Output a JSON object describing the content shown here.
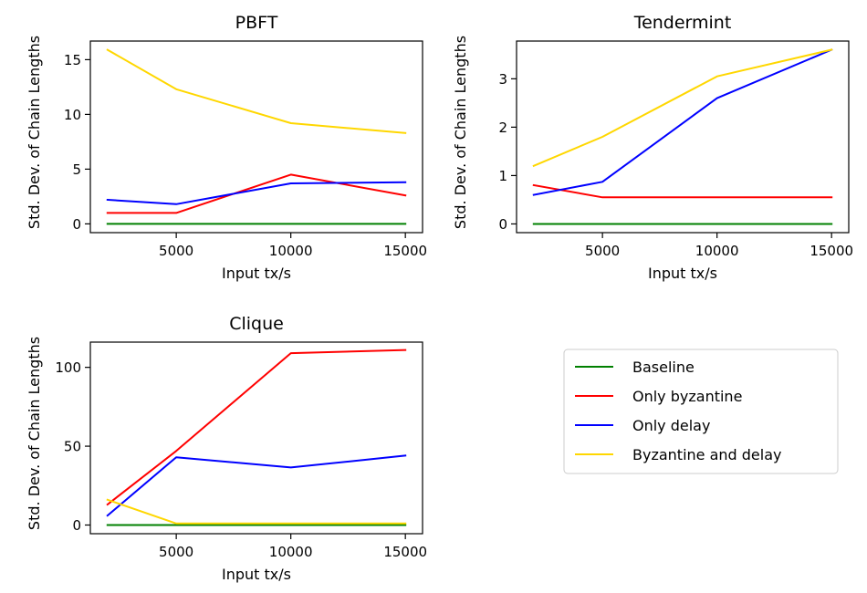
{
  "chart_data": [
    {
      "type": "line",
      "title": "PBFT",
      "xlabel": "Input tx/s",
      "ylabel": "Std. Dev. of Chain Lengths",
      "xlim": [
        1250,
        15750
      ],
      "ylim": [
        -0.8,
        16.7
      ],
      "x_ticks": [
        5000,
        10000,
        15000
      ],
      "y_ticks": [
        0,
        5,
        10,
        15
      ],
      "grid": false,
      "series": [
        {
          "name": "Baseline",
          "color": "#008000",
          "x": [
            2000,
            5000,
            10000,
            15000
          ],
          "y": [
            0,
            0,
            0,
            0
          ]
        },
        {
          "name": "Only byzantine",
          "color": "#ff0000",
          "x": [
            2000,
            5000,
            10000,
            15000
          ],
          "y": [
            1.0,
            1.0,
            4.5,
            2.6
          ]
        },
        {
          "name": "Only delay",
          "color": "#0000ff",
          "x": [
            2000,
            5000,
            10000,
            15000
          ],
          "y": [
            2.2,
            1.8,
            3.7,
            3.8
          ]
        },
        {
          "name": "Byzantine and delay",
          "color": "#ffd700",
          "x": [
            2000,
            5000,
            10000,
            15000
          ],
          "y": [
            15.9,
            12.3,
            9.2,
            8.3
          ]
        }
      ]
    },
    {
      "type": "line",
      "title": "Tendermint",
      "xlabel": "Input tx/s",
      "ylabel": "Std. Dev. of Chain Lengths",
      "xlim": [
        1250,
        15750
      ],
      "ylim": [
        -0.18,
        3.78
      ],
      "x_ticks": [
        5000,
        10000,
        15000
      ],
      "y_ticks": [
        0,
        1,
        2,
        3
      ],
      "grid": false,
      "series": [
        {
          "name": "Baseline",
          "color": "#008000",
          "x": [
            2000,
            5000,
            10000,
            15000
          ],
          "y": [
            0,
            0,
            0,
            0
          ]
        },
        {
          "name": "Only byzantine",
          "color": "#ff0000",
          "x": [
            2000,
            5000,
            10000,
            15000
          ],
          "y": [
            0.8,
            0.55,
            0.55,
            0.55
          ]
        },
        {
          "name": "Only delay",
          "color": "#0000ff",
          "x": [
            2000,
            5000,
            10000,
            15000
          ],
          "y": [
            0.6,
            0.87,
            2.6,
            3.6
          ]
        },
        {
          "name": "Byzantine and delay",
          "color": "#ffd700",
          "x": [
            2000,
            5000,
            10000,
            15000
          ],
          "y": [
            1.2,
            1.8,
            3.05,
            3.6
          ]
        }
      ]
    },
    {
      "type": "line",
      "title": "Clique",
      "xlabel": "Input tx/s",
      "ylabel": "Std. Dev. of Chain Lengths",
      "xlim": [
        1250,
        15750
      ],
      "ylim": [
        -5.5,
        116
      ],
      "x_ticks": [
        5000,
        10000,
        15000
      ],
      "y_ticks": [
        0,
        50,
        100
      ],
      "grid": false,
      "series": [
        {
          "name": "Baseline",
          "color": "#008000",
          "x": [
            2000,
            5000,
            10000,
            15000
          ],
          "y": [
            0,
            0,
            0,
            0
          ]
        },
        {
          "name": "Only byzantine",
          "color": "#ff0000",
          "x": [
            2000,
            5000,
            10000,
            15000
          ],
          "y": [
            13,
            47,
            109,
            111
          ]
        },
        {
          "name": "Only delay",
          "color": "#0000ff",
          "x": [
            2000,
            5000,
            10000,
            15000
          ],
          "y": [
            6,
            43,
            36.5,
            44
          ]
        },
        {
          "name": "Byzantine and delay",
          "color": "#ffd700",
          "x": [
            2000,
            5000,
            10000,
            15000
          ],
          "y": [
            16,
            1,
            1,
            1
          ]
        }
      ]
    }
  ],
  "legend": {
    "placement": "bottom-right",
    "entries": [
      {
        "label": "Baseline",
        "color": "#008000"
      },
      {
        "label": "Only byzantine",
        "color": "#ff0000"
      },
      {
        "label": "Only delay",
        "color": "#0000ff"
      },
      {
        "label": "Byzantine and delay",
        "color": "#ffd700"
      }
    ]
  }
}
